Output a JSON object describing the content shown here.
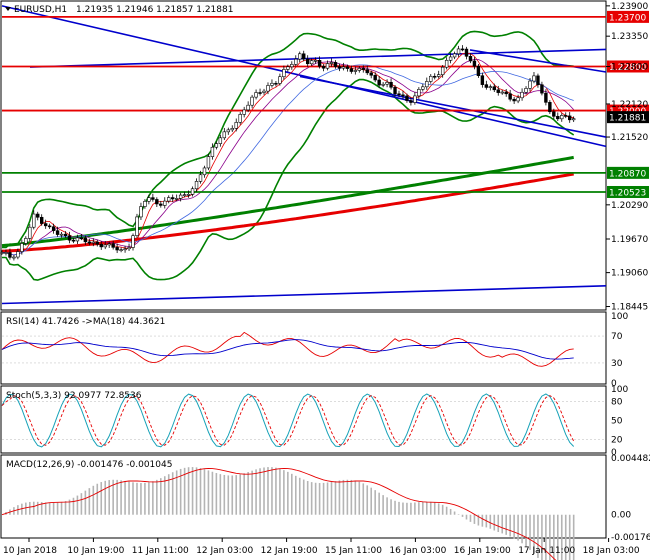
{
  "header": {
    "symbol": "EURUSD,H1",
    "ohlc": "1.21935 1.21946 1.21857 1.21881"
  },
  "colors": {
    "frame": "#000000",
    "red_line": "#e60000",
    "green_line": "#008000",
    "blue_line": "#0000cc",
    "bollinger": "#008000",
    "tag_red": "#e60000",
    "tag_green": "#008000",
    "tag_price": "#000000",
    "rsi_line": "#e60000",
    "rsi_ma": "#0000cc",
    "stoch_main": "#17a2b8",
    "stoch_signal": "#e60000",
    "macd_hist": "#b4b4b4",
    "macd_signal": "#e60000"
  },
  "chart_data": {
    "type": "line",
    "price_axis": {
      "ticks": [
        "1.23900",
        "1.23350",
        "1.22800",
        "1.22120",
        "1.21520",
        "1.20290",
        "1.19670",
        "1.19060",
        "1.18445"
      ],
      "range": [
        1.184,
        1.2397
      ]
    },
    "horizontal_levels": [
      {
        "price": 1.237,
        "label": "1.23700",
        "color": "red"
      },
      {
        "price": 1.228,
        "label": "1.22800",
        "color": "red"
      },
      {
        "price": 1.22,
        "label": "1.22000",
        "color": "red"
      },
      {
        "price": 1.2087,
        "label": "1.20870",
        "color": "green"
      },
      {
        "price": 1.20523,
        "label": "1.20523",
        "color": "green"
      }
    ],
    "current_price": {
      "price": 1.21881,
      "label": "1.21881"
    },
    "time_axis": {
      "labels": [
        "10 Jan 2018",
        "10 Jan 19:00",
        "11 Jan 11:00",
        "12 Jan 03:00",
        "12 Jan 19:00",
        "15 Jan 11:00",
        "16 Jan 03:00",
        "16 Jan 19:00",
        "17 Jan 11:00",
        "18 Jan 03:00"
      ]
    },
    "close_series": [
      1.194,
      1.1935,
      1.1945,
      1.197,
      1.201,
      1.2,
      1.1985,
      1.1975,
      1.197,
      1.1968,
      1.1965,
      1.1958,
      1.196,
      1.1955,
      1.195,
      1.1945,
      1.196,
      1.2015,
      1.2045,
      1.2035,
      1.203,
      1.204,
      1.2045,
      1.205,
      1.206,
      1.2095,
      1.213,
      1.215,
      1.216,
      1.218,
      1.22,
      1.222,
      1.2235,
      1.2245,
      1.225,
      1.227,
      1.229,
      1.23,
      1.2285,
      1.229,
      1.228,
      1.2285,
      1.2275,
      1.228,
      1.227,
      1.2275,
      1.226,
      1.225,
      1.2245,
      1.223,
      1.2225,
      1.2215,
      1.224,
      1.226,
      1.2265,
      1.228,
      1.2305,
      1.2315,
      1.2295,
      1.2265,
      1.2245,
      1.224,
      1.223,
      1.2225,
      1.222,
      1.224,
      1.226,
      1.224,
      1.2195,
      1.2185,
      1.219,
      1.2188
    ],
    "indicators": {
      "rsi": {
        "label": "RSI(14) 41.7426  ->MA(18) 44.3621",
        "levels": [
          "100",
          "70",
          "30",
          "0"
        ]
      },
      "stoch": {
        "label": "Stoch(5,3,3) 92.0977 72.8536",
        "levels": [
          "100",
          "80",
          "50",
          "20",
          "0"
        ]
      },
      "macd": {
        "label": "MACD(12,26,9) -0.001476 -0.001045",
        "levels": [
          "0.004482",
          "0.00",
          "-0.00176"
        ]
      }
    }
  }
}
